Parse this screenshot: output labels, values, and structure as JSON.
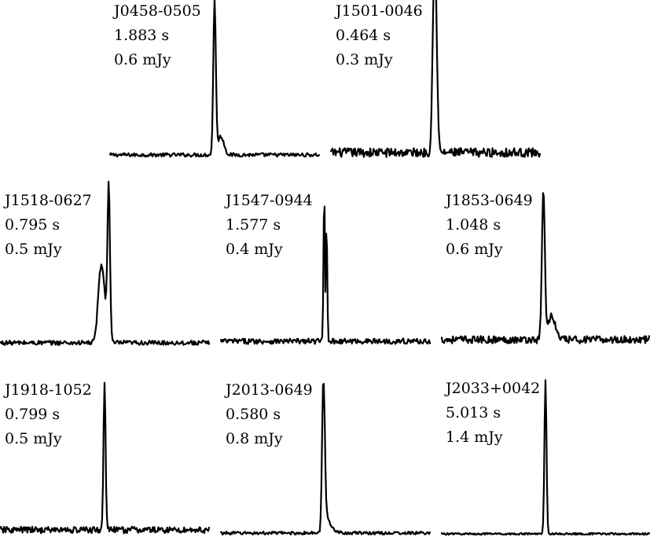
{
  "chart_data": [
    {
      "type": "line",
      "name": "J0458-0505",
      "period": "1.883 s",
      "flux": "0.6 mJy",
      "profile": {
        "peak_phase": 0.5,
        "peak_width": 0.006,
        "shoulder": 0.12,
        "shoulder_offset": 0.03,
        "noise": 0.012
      }
    },
    {
      "type": "line",
      "name": "J1501-0046",
      "period": "0.464 s",
      "flux": "0.3 mJy",
      "profile": {
        "peak_phase": 0.5,
        "peak_width": 0.008,
        "leading_step": 0.55,
        "noise": 0.03
      }
    },
    {
      "type": "line",
      "name": "J1518-0627",
      "period": "0.795 s",
      "flux": "0.5 mJy",
      "profile": {
        "peak_phase": 0.52,
        "peak_width": 0.006,
        "precursor": 0.38,
        "precursor_offset": -0.03,
        "noise": 0.015
      }
    },
    {
      "type": "line",
      "name": "J1547-0944",
      "period": "1.577 s",
      "flux": "0.4 mJy",
      "profile": {
        "peak_phase": 0.5,
        "peak_width": 0.006,
        "double_peak_ratio": 0.78,
        "noise": 0.018
      }
    },
    {
      "type": "line",
      "name": "J1853-0649",
      "period": "1.048 s",
      "flux": "0.6 mJy",
      "profile": {
        "peak_phase": 0.49,
        "peak_width": 0.007,
        "shoulder": 0.16,
        "shoulder_offset": 0.04,
        "noise": 0.025
      }
    },
    {
      "type": "line",
      "name": "J1918-1052",
      "period": "0.799 s",
      "flux": "0.5 mJy",
      "profile": {
        "peak_phase": 0.5,
        "peak_width": 0.005,
        "noise": 0.022
      }
    },
    {
      "type": "line",
      "name": "J2013-0649",
      "period": "0.580 s",
      "flux": "0.8 mJy",
      "profile": {
        "peak_phase": 0.49,
        "peak_width": 0.006,
        "tail": 0.32,
        "noise": 0.01
      }
    },
    {
      "type": "line",
      "name": "J2033+0042",
      "period": "5.013 s",
      "flux": "1.4 mJy",
      "profile": {
        "peak_phase": 0.5,
        "peak_width": 0.005,
        "noise": 0.006
      }
    }
  ]
}
